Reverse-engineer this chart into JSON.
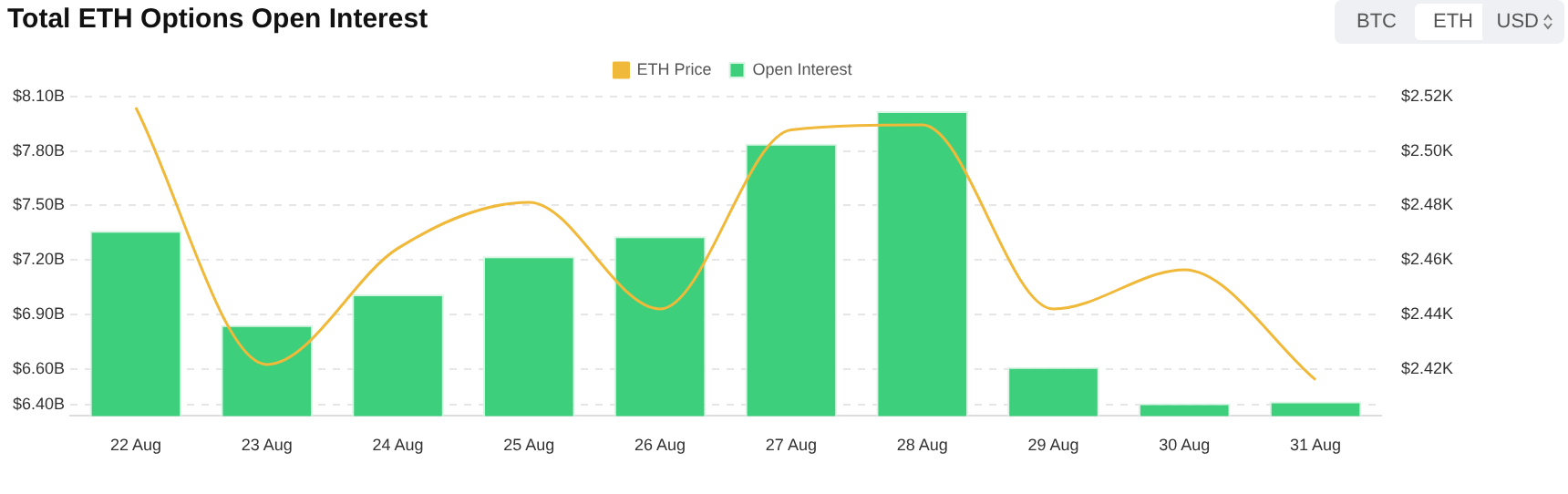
{
  "chart_data": {
    "type": "bar",
    "title": "Total ETH Options Open Interest",
    "categories": [
      "22 Aug",
      "23 Aug",
      "24 Aug",
      "25 Aug",
      "26 Aug",
      "27 Aug",
      "28 Aug",
      "29 Aug",
      "30 Aug",
      "31 Aug"
    ],
    "series": [
      {
        "name": "ETH Price",
        "type": "line",
        "axis": "y2",
        "color": "#f0b93a",
        "values": [
          2.516,
          2.4216,
          2.4643,
          2.4812,
          2.442,
          2.5078,
          2.5096,
          2.442,
          2.4564,
          2.416
        ]
      },
      {
        "name": "Open Interest",
        "color": "#3ecf7d",
        "values": [
          7.36,
          6.84,
          7.01,
          7.22,
          7.33,
          7.84,
          8.02,
          6.61,
          6.41,
          6.42
        ]
      }
    ],
    "ylim": [
      6.34,
      8.1
    ],
    "yticks": [
      {
        "value": 6.4,
        "label": "$6.40B"
      },
      {
        "value": 6.6,
        "label": "$6.60B"
      },
      {
        "value": 6.9,
        "label": "$6.90B"
      },
      {
        "value": 7.2,
        "label": "$7.20B"
      },
      {
        "value": 7.5,
        "label": "$7.50B"
      },
      {
        "value": 7.8,
        "label": "$7.80B"
      },
      {
        "value": 8.1,
        "label": "$8.10B"
      }
    ],
    "y2lim": [
      2.4027,
      2.52
    ],
    "y2ticks": [
      {
        "value": 2.42,
        "label": "$2.42K"
      },
      {
        "value": 2.44,
        "label": "$2.44K"
      },
      {
        "value": 2.46,
        "label": "$2.46K"
      },
      {
        "value": 2.48,
        "label": "$2.48K"
      },
      {
        "value": 2.5,
        "label": "$2.50K"
      },
      {
        "value": 2.52,
        "label": "$2.52K"
      }
    ],
    "grid": "y",
    "legend": "top",
    "marker": "none",
    "annotations": [
      "BTC",
      "ETH",
      "USD"
    ]
  }
}
